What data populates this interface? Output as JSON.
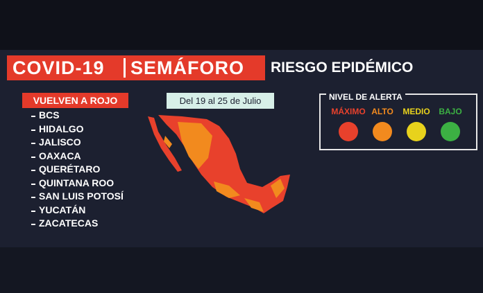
{
  "header": {
    "title": "COVID-19",
    "subtitle": "SEMÁFORO",
    "tagline": "RIESGO EPIDÉMICO"
  },
  "list": {
    "title": "VUELVEN A ROJO",
    "items": [
      "BCS",
      "HIDALGO",
      "JALISCO",
      "OAXACA",
      "QUERÉTARO",
      "QUINTANA ROO",
      "SAN LUIS POTOSÍ",
      "YUCATÁN",
      "ZACATECAS"
    ]
  },
  "period": "Del 19 al 25 de Julio",
  "legend": {
    "title": "NIVEL DE ALERTA",
    "levels": [
      {
        "label": "MÁXIMO",
        "color": "#e8412c"
      },
      {
        "label": "ALTO",
        "color": "#f28a1e"
      },
      {
        "label": "MEDIO",
        "color": "#e8d21c"
      },
      {
        "label": "BAJO",
        "color": "#3cb043"
      }
    ]
  }
}
